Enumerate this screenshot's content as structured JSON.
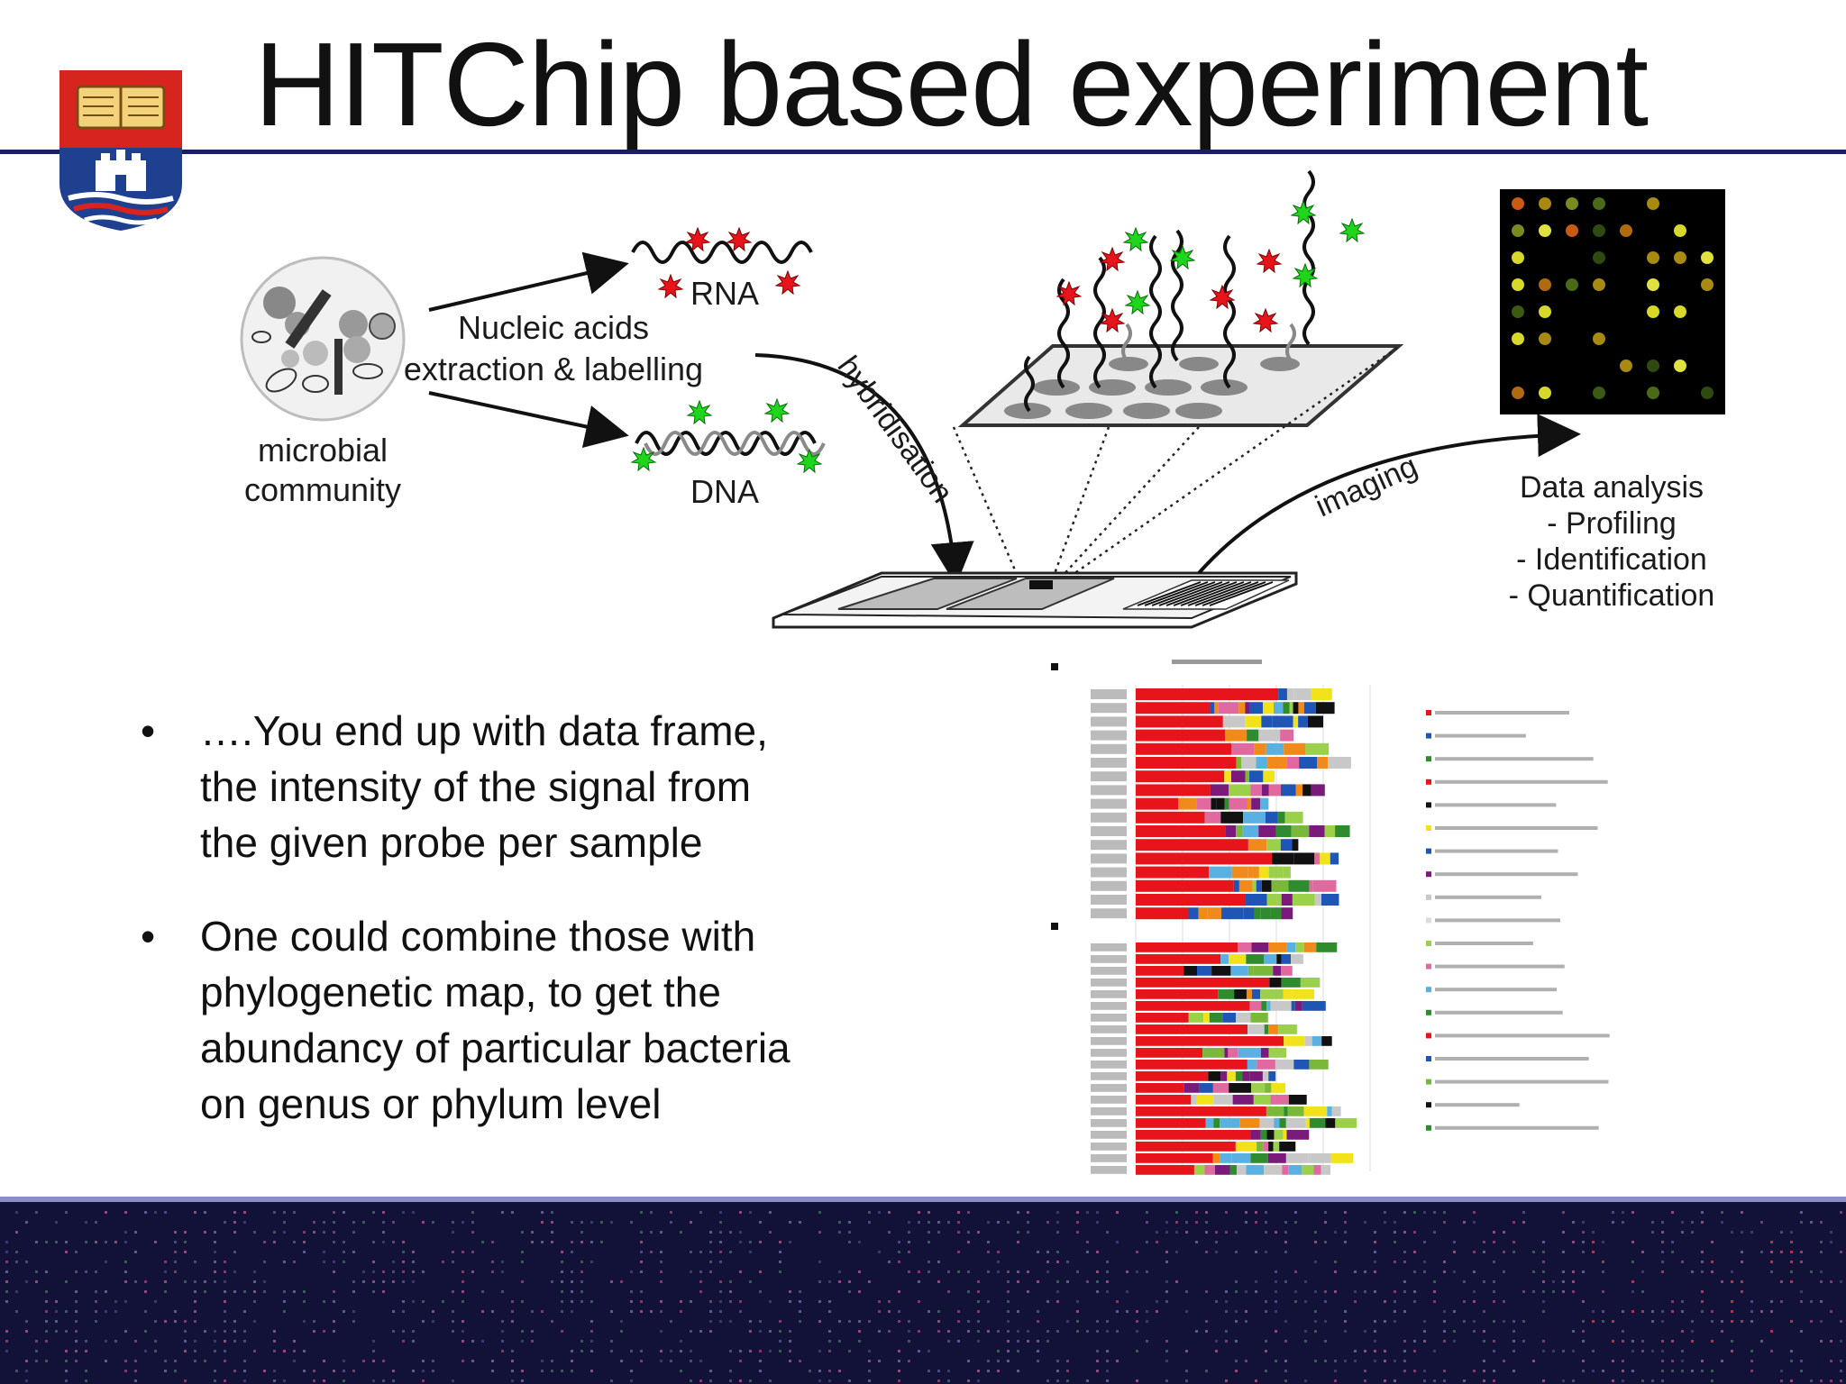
{
  "slide": {
    "title": "HITChip based experiment"
  },
  "diagram": {
    "microbial_label_1": "microbial",
    "microbial_label_2": "community",
    "extraction_label_1": "Nucleic acids",
    "extraction_label_2": "extraction & labelling",
    "rna_label": "RNA",
    "dna_label": "DNA",
    "hybridisation_label": "hybridisation",
    "imaging_label": "imaging",
    "analysis_title": "Data analysis",
    "analysis_items": [
      "- Profiling",
      "- Identification",
      "- Quantification"
    ],
    "label_red": "#e8141b",
    "label_green": "#1fd61c"
  },
  "bullets": [
    {
      "marker": "•",
      "lines": [
        "….You end up with data frame,",
        "the intensity of the signal from",
        "the given probe per sample"
      ]
    },
    {
      "marker": "•",
      "lines": [
        "One could combine those with",
        "phylogenetic map, to get the",
        "abundancy of particular bacteria",
        "on genus or phylum level"
      ]
    }
  ],
  "colors": {
    "title_rule": "#1b1f5e",
    "footer_bg": "#121238",
    "crest_red": "#d8241f",
    "crest_blue": "#1f3f8f"
  }
}
